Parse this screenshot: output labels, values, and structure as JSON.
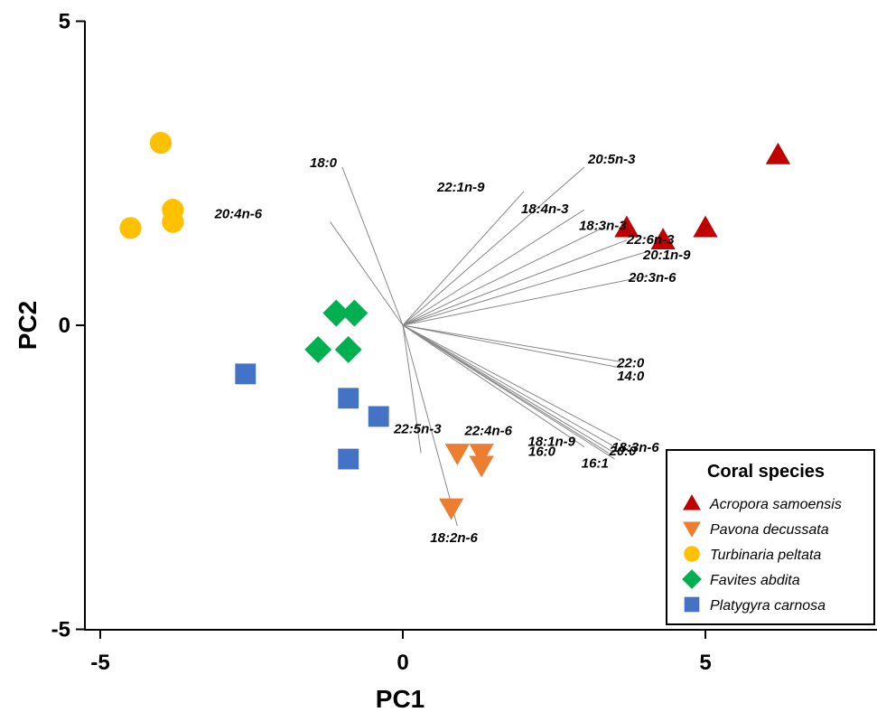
{
  "chart_data": {
    "type": "scatter",
    "title": "",
    "xlabel": "PC1",
    "ylabel": "PC2",
    "xlim": [
      -5,
      8
    ],
    "ylim": [
      -5,
      5
    ],
    "x_ticks": [
      -5,
      0,
      5
    ],
    "y_ticks": [
      5,
      0,
      -5
    ],
    "x_tick_labels": [
      "-5",
      "0",
      "5"
    ],
    "y_tick_labels": [
      "5",
      "0",
      "-5"
    ],
    "grid": false,
    "legend_position": "bottom-right",
    "legend_title": "Coral species",
    "series": [
      {
        "name": "Acropora samoensis",
        "marker": "triangle-up",
        "color": "#c00000",
        "points": [
          [
            6.2,
            2.8
          ],
          [
            5.0,
            1.6
          ],
          [
            4.3,
            1.4
          ],
          [
            3.7,
            1.6
          ]
        ]
      },
      {
        "name": "Pavona decussata",
        "marker": "triangle-down",
        "color": "#ed7d31",
        "points": [
          [
            1.3,
            -2.1
          ],
          [
            1.3,
            -2.3
          ],
          [
            0.9,
            -2.1
          ],
          [
            0.8,
            -3.0
          ]
        ]
      },
      {
        "name": "Turbinaria peltata",
        "marker": "circle",
        "color": "#ffc000",
        "points": [
          [
            -4.0,
            3.0
          ],
          [
            -3.8,
            1.9
          ],
          [
            -3.8,
            1.7
          ],
          [
            -4.5,
            1.6
          ]
        ]
      },
      {
        "name": "Favites abdita",
        "marker": "diamond",
        "color": "#00b050",
        "points": [
          [
            -1.1,
            0.2
          ],
          [
            -0.8,
            0.2
          ],
          [
            -1.4,
            -0.4
          ],
          [
            -0.9,
            -0.4
          ]
        ]
      },
      {
        "name": "Platygyra carnosa",
        "marker": "square",
        "color": "#4472c4",
        "points": [
          [
            -2.6,
            -0.8
          ],
          [
            -0.9,
            -1.2
          ],
          [
            -0.4,
            -1.5
          ],
          [
            -0.9,
            -2.2
          ]
        ]
      }
    ],
    "loadings": [
      {
        "name": "18:0",
        "end": [
          -1.0,
          2.6
        ]
      },
      {
        "name": "20:4n-6",
        "end": [
          -1.2,
          1.7
        ]
      },
      {
        "name": "20:5n-3",
        "end": [
          3.0,
          2.6
        ]
      },
      {
        "name": "22:1n-9",
        "end": [
          2.0,
          2.2
        ]
      },
      {
        "name": "18:4n-3",
        "end": [
          3.0,
          1.9
        ]
      },
      {
        "name": "18:3n-3",
        "end": [
          3.3,
          1.6
        ]
      },
      {
        "name": "22:6n-3",
        "end": [
          3.7,
          1.4
        ]
      },
      {
        "name": "20:1n-9",
        "end": [
          4.0,
          1.2
        ]
      },
      {
        "name": "20:3n-6",
        "end": [
          4.0,
          0.8
        ]
      },
      {
        "name": "22:0",
        "end": [
          3.6,
          -0.6
        ]
      },
      {
        "name": "14:0",
        "end": [
          3.6,
          -0.7
        ]
      },
      {
        "name": "18:3n-6",
        "end": [
          3.6,
          -1.9
        ]
      },
      {
        "name": "22:4n-6",
        "end": [
          3.5,
          -2.0
        ]
      },
      {
        "name": "18:1n-9",
        "end": [
          3.5,
          -2.1
        ]
      },
      {
        "name": "20:0",
        "end": [
          3.5,
          -2.2
        ]
      },
      {
        "name": "16:0",
        "end": [
          3.0,
          -2.0
        ]
      },
      {
        "name": "16:1",
        "end": [
          3.4,
          -2.1
        ]
      },
      {
        "name": "22:5n-3",
        "end": [
          0.3,
          -2.1
        ]
      },
      {
        "name": "18:2n-6",
        "end": [
          0.9,
          -3.3
        ]
      }
    ]
  }
}
